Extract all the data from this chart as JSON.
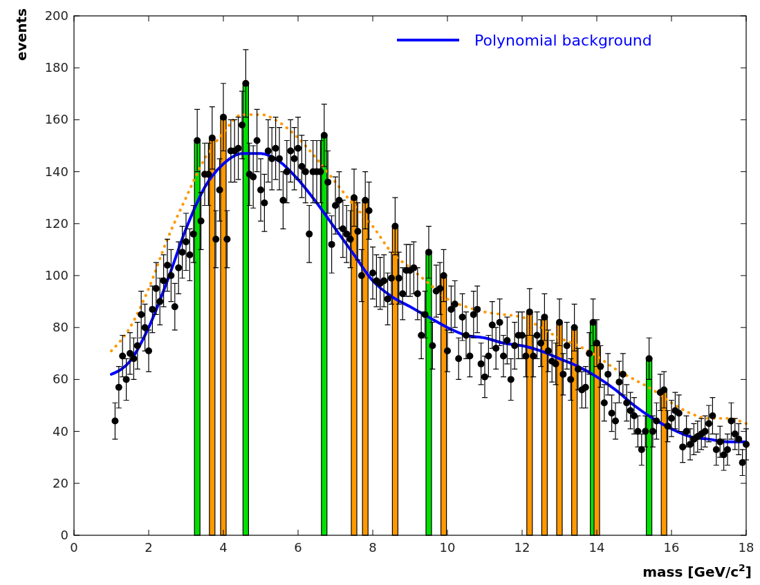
{
  "chart_data": {
    "type": "scatter",
    "xlabel": "mass [GeV/c$^{2}$]",
    "ylabel": "events",
    "xlim": [
      0,
      18
    ],
    "xticks": [
      0,
      2,
      4,
      6,
      8,
      10,
      12,
      14,
      16,
      18
    ],
    "ylim": [
      0,
      200
    ],
    "yticks": [
      0,
      20,
      40,
      60,
      80,
      100,
      120,
      140,
      160,
      180,
      200
    ],
    "grid": false,
    "legend": "top right",
    "series": [
      {
        "type": "bar",
        "color": "#00e000",
        "x": [
          3.3,
          4.6,
          6.7,
          9.5,
          13.9,
          15.4
        ],
        "values": [
          152,
          174,
          154,
          109,
          82,
          68
        ]
      },
      {
        "type": "bar",
        "color": "#ff9900",
        "x": [
          3.7,
          4.0,
          7.5,
          7.8,
          8.6,
          9.9,
          12.2,
          12.6,
          13.0,
          13.4,
          14.0,
          15.8
        ],
        "values": [
          153,
          161,
          130,
          129,
          119,
          100,
          86,
          84,
          82,
          80,
          74,
          56
        ]
      },
      {
        "type": "line",
        "color": "#ff9900",
        "line_style": "dotted",
        "x": [
          1,
          1.5,
          2,
          2.5,
          3,
          3.5,
          4,
          4.5,
          5,
          5.5,
          6,
          6.5,
          7,
          7.5,
          8,
          8.5,
          9,
          9.5,
          10,
          10.5,
          11,
          11.5,
          12,
          12.5,
          13,
          13.5,
          14,
          14.5,
          15,
          15.5,
          16,
          16.5,
          17,
          17.5,
          18
        ],
        "values": [
          71,
          80,
          95,
          114,
          130,
          145,
          155,
          162,
          162,
          159,
          153,
          145,
          136,
          127,
          119,
          109,
          103,
          97,
          91,
          88,
          86,
          85,
          84,
          80,
          76,
          73,
          69,
          64,
          60,
          56,
          51,
          47,
          45,
          45,
          43
        ]
      },
      {
        "type": "line",
        "name": "Polynomial background",
        "color": "#0000ff",
        "line_style": "solid",
        "x": [
          1,
          1.5,
          2,
          2.5,
          3,
          3.5,
          4,
          4.5,
          5,
          5.5,
          6,
          6.5,
          7,
          7.5,
          8,
          8.5,
          9,
          9.5,
          10,
          10.5,
          11,
          11.5,
          12,
          12.5,
          13,
          13.5,
          14,
          14.5,
          15,
          15.5,
          16,
          16.5,
          17,
          17.5,
          18
        ],
        "values": [
          62,
          67,
          80,
          98,
          118,
          134,
          143,
          147,
          147,
          144,
          137,
          128,
          118,
          108,
          98,
          92,
          88,
          84,
          80,
          77,
          76,
          74,
          73,
          71,
          68,
          65,
          61,
          56,
          50,
          45,
          41,
          38,
          37,
          36,
          36
        ]
      },
      {
        "color": "#000000",
        "marker": "circle",
        "x": [
          1.1,
          1.2,
          1.3,
          1.4,
          1.5,
          1.6,
          1.7,
          1.8,
          1.9,
          2.0,
          2.1,
          2.2,
          2.3,
          2.4,
          2.5,
          2.6,
          2.7,
          2.8,
          2.9,
          3.0,
          3.1,
          3.2,
          3.3,
          3.4,
          3.5,
          3.6,
          3.7,
          3.8,
          3.9,
          4.0,
          4.1,
          4.2,
          4.3,
          4.4,
          4.5,
          4.6,
          4.7,
          4.8,
          4.9,
          5.0,
          5.1,
          5.2,
          5.3,
          5.4,
          5.5,
          5.6,
          5.7,
          5.8,
          5.9,
          6.0,
          6.1,
          6.2,
          6.3,
          6.4,
          6.5,
          6.6,
          6.7,
          6.8,
          6.9,
          7.0,
          7.1,
          7.2,
          7.3,
          7.4,
          7.5,
          7.6,
          7.7,
          7.8,
          7.9,
          8.0,
          8.1,
          8.2,
          8.3,
          8.4,
          8.5,
          8.6,
          8.7,
          8.8,
          8.9,
          9.0,
          9.1,
          9.2,
          9.3,
          9.4,
          9.5,
          9.6,
          9.7,
          9.8,
          9.9,
          10.0,
          10.1,
          10.2,
          10.3,
          10.4,
          10.5,
          10.6,
          10.7,
          10.8,
          10.9,
          11.0,
          11.1,
          11.2,
          11.3,
          11.4,
          11.5,
          11.6,
          11.7,
          11.8,
          11.9,
          12.0,
          12.1,
          12.2,
          12.3,
          12.4,
          12.5,
          12.6,
          12.7,
          12.8,
          12.9,
          13.0,
          13.1,
          13.2,
          13.3,
          13.4,
          13.5,
          13.6,
          13.7,
          13.8,
          13.9,
          14.0,
          14.1,
          14.2,
          14.3,
          14.4,
          14.5,
          14.6,
          14.7,
          14.8,
          14.9,
          15.0,
          15.1,
          15.2,
          15.3,
          15.4,
          15.5,
          15.6,
          15.7,
          15.8,
          15.9,
          16.0,
          16.1,
          16.2,
          16.3,
          16.4,
          16.5,
          16.6,
          16.7,
          16.8,
          16.9,
          17.0,
          17.1,
          17.2,
          17.3,
          17.4,
          17.5,
          17.6,
          17.7,
          17.8,
          17.9,
          18.0
        ],
        "values": [
          44,
          57,
          69,
          60,
          70,
          68,
          73,
          85,
          80,
          71,
          87,
          95,
          90,
          98,
          104,
          100,
          88,
          103,
          109,
          113,
          108,
          116,
          152,
          121,
          139,
          139,
          153,
          114,
          133,
          161,
          114,
          148,
          148,
          149,
          158,
          174,
          139,
          138,
          152,
          133,
          128,
          148,
          145,
          149,
          145,
          129,
          140,
          148,
          145,
          149,
          142,
          140,
          116,
          140,
          140,
          140,
          154,
          136,
          112,
          127,
          129,
          118,
          116,
          114,
          130,
          117,
          100,
          129,
          125,
          101,
          98,
          97,
          98,
          91,
          99,
          119,
          99,
          93,
          102,
          102,
          103,
          93,
          77,
          85,
          109,
          73,
          94,
          95,
          100,
          71,
          87,
          89,
          68,
          84,
          77,
          69,
          85,
          87,
          66,
          61,
          69,
          81,
          72,
          82,
          69,
          75,
          60,
          73,
          77,
          77,
          69,
          86,
          69,
          77,
          74,
          84,
          71,
          67,
          66,
          82,
          62,
          73,
          60,
          80,
          64,
          56,
          57,
          70,
          82,
          74,
          65,
          51,
          62,
          47,
          44,
          59,
          62,
          51,
          48,
          46,
          40,
          33,
          40,
          68,
          40,
          44,
          55,
          56,
          42,
          45,
          48,
          47,
          34,
          40,
          35,
          37,
          38,
          39,
          40,
          43,
          46,
          33,
          36,
          31,
          33,
          44,
          39,
          37,
          28,
          35
        ],
        "errors": [
          7,
          8,
          8,
          8,
          8,
          8,
          9,
          9,
          9,
          8,
          9,
          10,
          9,
          10,
          10,
          10,
          9,
          10,
          10,
          11,
          10,
          11,
          12,
          11,
          12,
          12,
          12,
          11,
          12,
          13,
          11,
          12,
          12,
          12,
          13,
          13,
          12,
          12,
          12,
          12,
          11,
          12,
          12,
          12,
          12,
          11,
          12,
          12,
          12,
          12,
          12,
          12,
          11,
          12,
          12,
          12,
          12,
          12,
          11,
          11,
          11,
          11,
          11,
          11,
          11,
          11,
          10,
          11,
          11,
          10,
          10,
          10,
          10,
          10,
          10,
          11,
          10,
          10,
          10,
          10,
          10,
          10,
          9,
          9,
          10,
          9,
          10,
          10,
          10,
          8,
          9,
          9,
          8,
          9,
          9,
          8,
          9,
          9,
          8,
          8,
          8,
          9,
          8,
          9,
          8,
          9,
          8,
          9,
          9,
          9,
          8,
          9,
          8,
          9,
          9,
          9,
          8,
          8,
          8,
          9,
          8,
          9,
          8,
          9,
          8,
          7,
          8,
          8,
          9,
          9,
          8,
          7,
          8,
          7,
          7,
          8,
          8,
          7,
          7,
          7,
          6,
          6,
          6,
          8,
          6,
          7,
          7,
          7,
          6,
          7,
          7,
          7,
          6,
          6,
          6,
          6,
          6,
          6,
          6,
          7,
          7,
          6,
          6,
          6,
          6,
          7,
          6,
          6,
          5,
          6
        ]
      }
    ]
  }
}
